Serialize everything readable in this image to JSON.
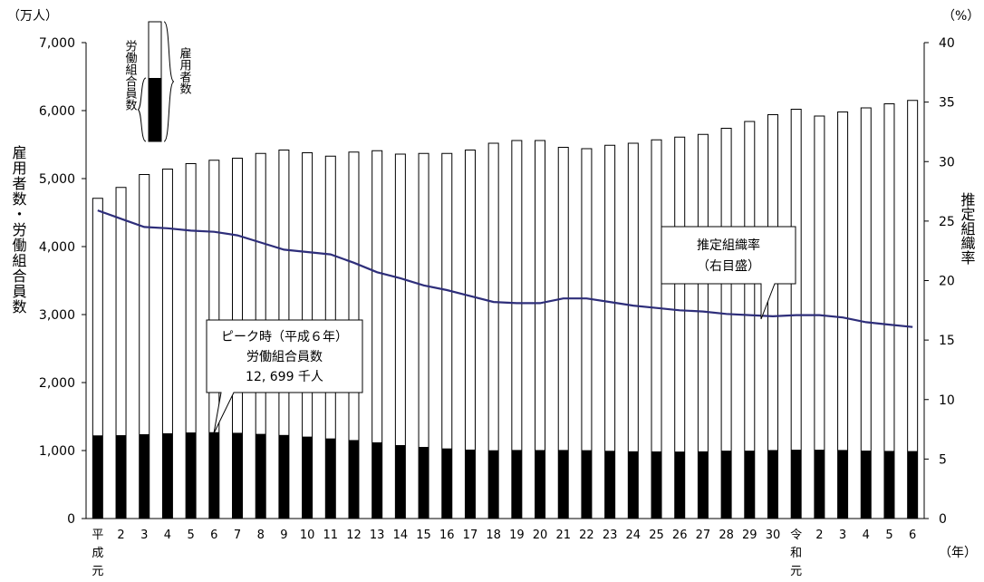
{
  "chart_data": {
    "type": "bar",
    "unit_left": "（万人）",
    "unit_right": "（%）",
    "ylabel_left": "雇用者数・労働組合員数",
    "ylabel_right": "推定組織率",
    "xlabel": "（年）",
    "ylim_left": [
      0,
      7000
    ],
    "ylim_right": [
      0,
      40
    ],
    "yticks_left": [
      "0",
      "1,000",
      "2,000",
      "3,000",
      "4,000",
      "5,000",
      "6,000",
      "7,000"
    ],
    "yticks_right": [
      "0",
      "5",
      "10",
      "15",
      "20",
      "25",
      "30",
      "35",
      "40"
    ],
    "categories": [
      "平成元",
      "2",
      "3",
      "4",
      "5",
      "6",
      "7",
      "8",
      "9",
      "10",
      "11",
      "12",
      "13",
      "14",
      "15",
      "16",
      "17",
      "18",
      "19",
      "20",
      "21",
      "22",
      "23",
      "24",
      "25",
      "26",
      "27",
      "28",
      "29",
      "30",
      "令和元",
      "2",
      "3",
      "4",
      "5",
      "6"
    ],
    "series": [
      {
        "name": "雇用者数",
        "axis": "left",
        "type": "bar",
        "values": [
          4710,
          4870,
          5060,
          5140,
          5220,
          5270,
          5300,
          5370,
          5420,
          5380,
          5330,
          5390,
          5410,
          5360,
          5370,
          5370,
          5420,
          5520,
          5560,
          5560,
          5460,
          5440,
          5490,
          5520,
          5570,
          5610,
          5650,
          5740,
          5840,
          5940,
          6020,
          5920,
          5980,
          6040,
          6100,
          6150
        ]
      },
      {
        "name": "労働組合員数",
        "axis": "left",
        "type": "bar",
        "values": [
          1223,
          1226,
          1240,
          1254,
          1266,
          1270,
          1261,
          1245,
          1229,
          1205,
          1178,
          1154,
          1121,
          1080,
          1053,
          1031,
          1014,
          1004,
          1008,
          1007,
          1008,
          1005,
          996,
          989,
          987,
          985,
          988,
          998,
          998,
          1007,
          1012,
          1012,
          1008,
          999,
          994,
          992
        ]
      },
      {
        "name": "推定組織率",
        "axis": "right",
        "type": "line",
        "values": [
          25.9,
          25.2,
          24.5,
          24.4,
          24.2,
          24.1,
          23.8,
          23.2,
          22.6,
          22.4,
          22.2,
          21.5,
          20.7,
          20.2,
          19.6,
          19.2,
          18.7,
          18.2,
          18.1,
          18.1,
          18.5,
          18.5,
          18.2,
          17.9,
          17.7,
          17.5,
          17.4,
          17.2,
          17.1,
          17.0,
          17.1,
          17.1,
          16.9,
          16.5,
          16.3,
          16.1
        ]
      }
    ],
    "legend": {
      "bar_whole": "雇用者数",
      "bar_filled": "労働組合員数"
    },
    "annotations": {
      "peak": [
        "ピーク時（平成６年）",
        "労働組合員数",
        "12, 699 千人"
      ],
      "rate": [
        "推定組織率",
        "（右目盛）"
      ]
    }
  }
}
